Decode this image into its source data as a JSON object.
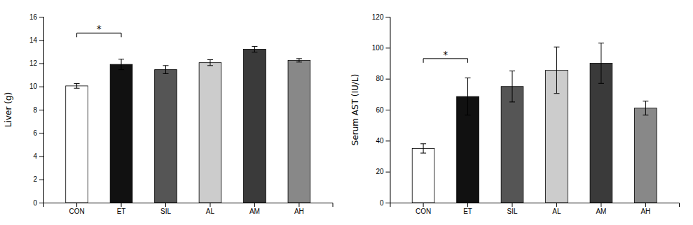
{
  "chart_data": [
    {
      "type": "bar",
      "ylabel": "Liver (g)",
      "categories": [
        "CON",
        "ET",
        "SIL",
        "AL",
        "AM",
        "AH"
      ],
      "values": [
        10.05,
        11.9,
        11.45,
        12.05,
        13.2,
        12.25
      ],
      "errors": [
        0.2,
        0.45,
        0.35,
        0.25,
        0.25,
        0.15
      ],
      "colors": [
        "#ffffff",
        "#111111",
        "#555555",
        "#cccccc",
        "#3a3a3a",
        "#888888"
      ],
      "ylim": [
        0,
        16
      ],
      "yticks": [
        0,
        2,
        4,
        6,
        8,
        10,
        12,
        14,
        16
      ],
      "annotations": [
        {
          "text": "*",
          "from": "CON",
          "to": "ET",
          "y": 14.6
        }
      ],
      "grid": false
    },
    {
      "type": "bar",
      "ylabel": "Serum AST (IU/L)",
      "categories": [
        "CON",
        "ET",
        "SIL",
        "AL",
        "AM",
        "AH"
      ],
      "values": [
        35.0,
        68.5,
        75.0,
        85.5,
        90.0,
        61.0
      ],
      "errors": [
        3.0,
        12.0,
        10.0,
        15.0,
        13.0,
        4.5
      ],
      "colors": [
        "#ffffff",
        "#111111",
        "#555555",
        "#cccccc",
        "#3a3a3a",
        "#888888"
      ],
      "ylim": [
        0,
        120
      ],
      "yticks": [
        0,
        20,
        40,
        60,
        80,
        100,
        120
      ],
      "annotations": [
        {
          "text": "*",
          "from": "CON",
          "to": "ET",
          "y": 93
        }
      ],
      "grid": false
    }
  ]
}
